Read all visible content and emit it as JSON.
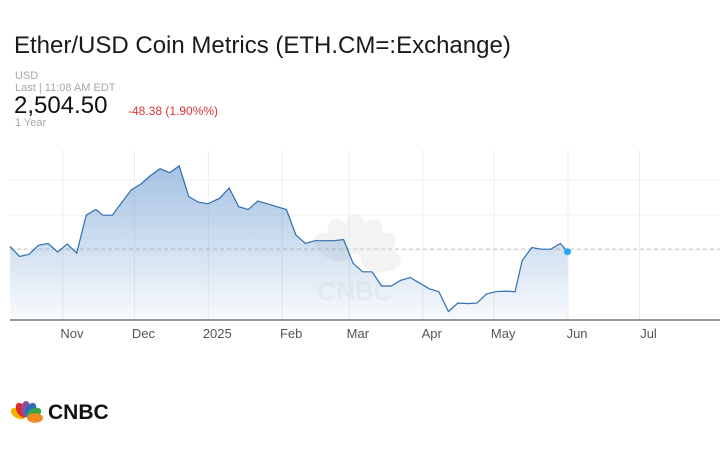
{
  "header": {
    "title": "Ether/USD Coin Metrics (ETH.CM=:Exchange)",
    "currency": "USD",
    "last_updated": "Last | 11:08 AM EDT",
    "price": "2,504.50",
    "change": "-48.38 (1.90%%)",
    "period": "1 Year"
  },
  "colors": {
    "line": "#2f6fb0",
    "fill": "#5b8fcb",
    "change_negative": "#d93636",
    "last_point": "#2aa7f0",
    "reference_line": "#c8c8c8"
  },
  "chart_data": {
    "type": "area",
    "title": "",
    "xlabel": "",
    "ylabel": "",
    "x_tick_labels": [
      "Nov",
      "Dec",
      "2025",
      "Feb",
      "Mar",
      "Apr",
      "May",
      "Jun",
      "Jul"
    ],
    "x_range": [
      "2024-10-06",
      "2025-07-31"
    ],
    "ylim": [
      1300,
      4300
    ],
    "grid": true,
    "reference_line_value": 2552.88,
    "last_value": 2504.5,
    "series": [
      {
        "x": [
          "2024-10-06",
          "2024-10-10",
          "2024-10-14",
          "2024-10-18",
          "2024-10-22",
          "2024-10-26",
          "2024-10-30",
          "2024-11-03",
          "2024-11-07",
          "2024-11-11",
          "2024-11-14",
          "2024-11-18",
          "2024-11-22",
          "2024-11-26",
          "2024-11-30",
          "2024-12-04",
          "2024-12-08",
          "2024-12-12",
          "2024-12-16",
          "2024-12-20",
          "2024-12-24",
          "2024-12-28",
          "2025-01-02",
          "2025-01-06",
          "2025-01-10",
          "2025-01-14",
          "2025-01-18",
          "2025-01-22",
          "2025-01-26",
          "2025-01-30",
          "2025-02-03",
          "2025-02-07",
          "2025-02-11",
          "2025-02-15",
          "2025-02-19",
          "2025-02-23",
          "2025-02-27",
          "2025-03-03",
          "2025-03-07",
          "2025-03-11",
          "2025-03-15",
          "2025-03-19",
          "2025-03-23",
          "2025-03-27",
          "2025-03-31",
          "2025-04-04",
          "2025-04-08",
          "2025-04-12",
          "2025-04-16",
          "2025-04-20",
          "2025-04-24",
          "2025-04-28",
          "2025-05-02",
          "2025-05-06",
          "2025-05-09",
          "2025-05-13",
          "2025-05-17",
          "2025-05-21",
          "2025-05-25",
          "2025-05-28"
        ],
        "y": [
          2600,
          2420,
          2460,
          2620,
          2650,
          2500,
          2640,
          2480,
          3150,
          3250,
          3150,
          3150,
          3380,
          3600,
          3700,
          3850,
          3970,
          3900,
          4020,
          3480,
          3380,
          3350,
          3450,
          3630,
          3300,
          3250,
          3400,
          3350,
          3300,
          3250,
          2800,
          2650,
          2700,
          2700,
          2700,
          2720,
          2300,
          2150,
          2150,
          1900,
          1900,
          2000,
          2050,
          1950,
          1850,
          1800,
          1450,
          1600,
          1590,
          1600,
          1760,
          1800,
          1810,
          1800,
          2350,
          2580,
          2550,
          2550,
          2650,
          2504.5
        ]
      }
    ]
  },
  "watermark": "CNBC",
  "footer": {
    "logo_text": "CNBC"
  }
}
